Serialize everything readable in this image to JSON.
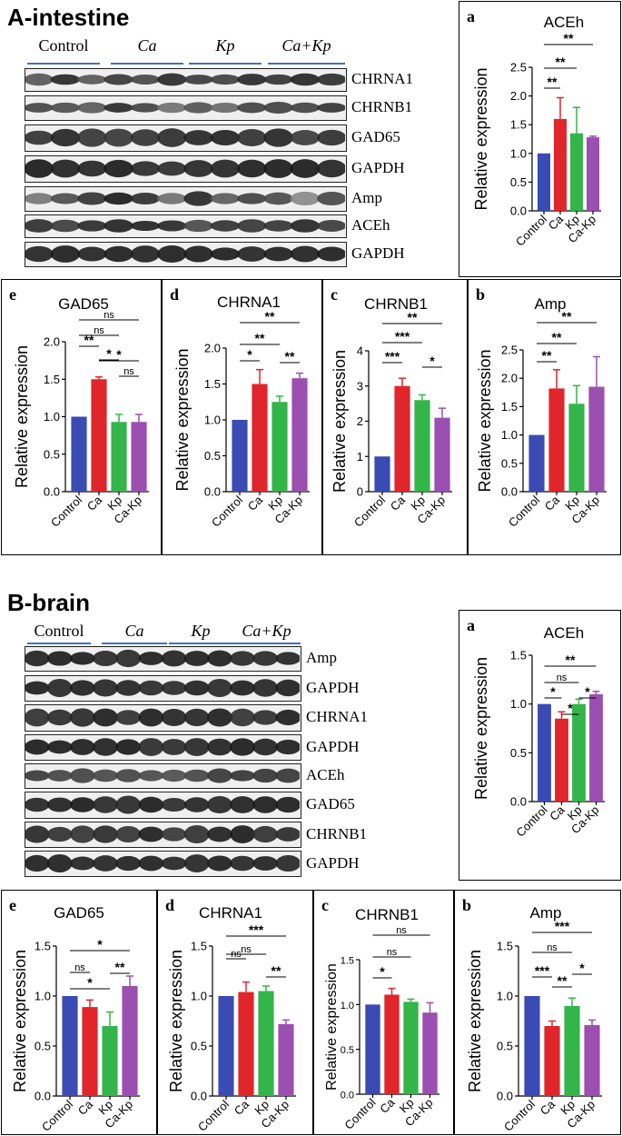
{
  "sections": [
    {
      "id": "A",
      "title": "A-intestine",
      "groups": [
        "Control",
        "Ca",
        "Kp",
        "Ca+Kp"
      ],
      "bands": [
        "CHRNA1",
        "CHRNB1",
        "GAD65",
        "GAPDH",
        "Amp",
        "ACEh",
        "GAPDH"
      ],
      "charts": [
        {
          "letter": "a",
          "title": "ACEh",
          "type": "bar",
          "ylabel": "Relative expression",
          "categories": [
            "Control",
            "Ca",
            "Kp",
            "Ca-Kp"
          ],
          "values": [
            1.0,
            1.6,
            1.35,
            1.28
          ],
          "errors": [
            0,
            0.37,
            0.45,
            0.02
          ],
          "ylim": [
            0,
            2.5
          ],
          "yticks": [
            "0.0",
            "0.5",
            "1.0",
            "1.5",
            "2.0",
            "2.5"
          ],
          "annotations": [
            {
              "from": 0,
              "to": 1,
              "text": "**"
            },
            {
              "from": 0,
              "to": 2,
              "text": "**"
            },
            {
              "from": 0,
              "to": 3,
              "text": "**"
            }
          ]
        },
        {
          "letter": "e",
          "title": "GAD65",
          "type": "bar",
          "ylabel": "Relative expression",
          "categories": [
            "Control",
            "Ca",
            "Kp",
            "Ca-Kp"
          ],
          "values": [
            1.0,
            1.5,
            0.93,
            0.93
          ],
          "errors": [
            0,
            0.03,
            0.1,
            0.1
          ],
          "ylim": [
            0,
            2.0
          ],
          "yticks": [
            "0.0",
            "0.5",
            "1.0",
            "1.5",
            "2.0"
          ],
          "annotations": [
            {
              "from": 0,
              "to": 1,
              "text": "**"
            },
            {
              "from": 1,
              "to": 2,
              "text": "*"
            },
            {
              "from": 2,
              "to": 3,
              "text": "ns"
            },
            {
              "from": 1,
              "to": 3,
              "text": "*"
            },
            {
              "from": 0,
              "to": 2,
              "text": "ns"
            },
            {
              "from": 0,
              "to": 3,
              "text": "ns"
            }
          ]
        },
        {
          "letter": "d",
          "title": "CHRNA1",
          "type": "bar",
          "ylabel": "Relative expression",
          "categories": [
            "Control",
            "Ca",
            "Kp",
            "Ca-Kp"
          ],
          "values": [
            1.0,
            1.5,
            1.25,
            1.58
          ],
          "errors": [
            0,
            0.2,
            0.08,
            0.07
          ],
          "ylim": [
            0,
            2.0
          ],
          "yticks": [
            "0.0",
            "0.5",
            "1.0",
            "1.5",
            "2.0"
          ],
          "annotations": [
            {
              "from": 0,
              "to": 1,
              "text": "*"
            },
            {
              "from": 2,
              "to": 3,
              "text": "**"
            },
            {
              "from": 0,
              "to": 2,
              "text": "**"
            },
            {
              "from": 0,
              "to": 3,
              "text": "**"
            }
          ]
        },
        {
          "letter": "c",
          "title": "CHRNB1",
          "type": "bar",
          "ylabel": "Relative expression",
          "categories": [
            "Control",
            "Ca",
            "Kp",
            "Ca-Kp"
          ],
          "values": [
            1.0,
            3.0,
            2.6,
            2.1
          ],
          "errors": [
            0,
            0.22,
            0.15,
            0.27
          ],
          "ylim": [
            0,
            4
          ],
          "yticks": [
            "0",
            "1",
            "2",
            "3",
            "4"
          ],
          "annotations": [
            {
              "from": 0,
              "to": 1,
              "text": "***"
            },
            {
              "from": 2,
              "to": 3,
              "text": "*"
            },
            {
              "from": 0,
              "to": 2,
              "text": "***"
            },
            {
              "from": 0,
              "to": 3,
              "text": "**"
            }
          ]
        },
        {
          "letter": "b",
          "title": "Amp",
          "type": "bar",
          "ylabel": "Relative expression",
          "categories": [
            "Control",
            "Ca",
            "Kp",
            "Ca-Kp"
          ],
          "values": [
            1.0,
            1.82,
            1.55,
            1.85
          ],
          "errors": [
            0,
            0.33,
            0.32,
            0.53
          ],
          "ylim": [
            0,
            2.5
          ],
          "yticks": [
            "0.0",
            "0.5",
            "1.0",
            "1.5",
            "2.0",
            "2.5"
          ],
          "annotations": [
            {
              "from": 0,
              "to": 1,
              "text": "**"
            },
            {
              "from": 0,
              "to": 2,
              "text": "**"
            },
            {
              "from": 0,
              "to": 3,
              "text": "**"
            }
          ]
        }
      ]
    },
    {
      "id": "B",
      "title": "B-brain",
      "groups": [
        "Control",
        "Ca",
        "Kp",
        "Ca+Kp"
      ],
      "bands": [
        "Amp",
        "GAPDH",
        "CHRNA1",
        "GAPDH",
        "ACEh",
        "GAD65",
        "CHRNB1",
        "GAPDH"
      ],
      "charts": [
        {
          "letter": "a",
          "title": "ACEh",
          "type": "bar",
          "ylabel": "Relative expression",
          "categories": [
            "Control",
            "Ca",
            "Kp",
            "Ca-Kp"
          ],
          "values": [
            1.0,
            0.85,
            1.0,
            1.1
          ],
          "errors": [
            0,
            0.07,
            0.05,
            0.03
          ],
          "ylim": [
            0,
            1.5
          ],
          "yticks": [
            "0.0",
            "0.5",
            "1.0",
            "1.5"
          ],
          "annotations": [
            {
              "from": 0,
              "to": 1,
              "text": "*"
            },
            {
              "from": 1,
              "to": 2,
              "text": "*"
            },
            {
              "from": 2,
              "to": 3,
              "text": "*"
            },
            {
              "from": 0,
              "to": 2,
              "text": "ns"
            },
            {
              "from": 0,
              "to": 3,
              "text": "**"
            }
          ]
        },
        {
          "letter": "e",
          "title": "GAD65",
          "type": "bar",
          "ylabel": "Relative expression",
          "categories": [
            "Control",
            "Ca",
            "Kp",
            "Ca-Kp"
          ],
          "values": [
            1.0,
            0.89,
            0.7,
            1.1
          ],
          "errors": [
            0,
            0.07,
            0.14,
            0.1
          ],
          "ylim": [
            0,
            1.5
          ],
          "yticks": [
            "0.0",
            "0.5",
            "1.0",
            "1.5"
          ],
          "annotations": [
            {
              "from": 0,
              "to": 1,
              "text": "ns"
            },
            {
              "from": 0,
              "to": 2,
              "text": "*"
            },
            {
              "from": 2,
              "to": 3,
              "text": "**"
            },
            {
              "from": 0,
              "to": 3,
              "text": "*"
            }
          ]
        },
        {
          "letter": "d",
          "title": "CHRNA1",
          "type": "bar",
          "ylabel": "Relative expression",
          "categories": [
            "Control",
            "Ca",
            "Kp",
            "Ca-Kp"
          ],
          "values": [
            1.0,
            1.04,
            1.05,
            0.72
          ],
          "errors": [
            0,
            0.1,
            0.05,
            0.04
          ],
          "ylim": [
            0,
            1.5
          ],
          "yticks": [
            "0.0",
            "0.5",
            "1.0",
            "1.5"
          ],
          "annotations": [
            {
              "from": 0,
              "to": 1,
              "text": "ns"
            },
            {
              "from": 2,
              "to": 3,
              "text": "**"
            },
            {
              "from": 0,
              "to": 2,
              "text": "ns"
            },
            {
              "from": 0,
              "to": 3,
              "text": "***"
            }
          ]
        },
        {
          "letter": "c",
          "title": "CHRNB1",
          "type": "bar",
          "ylabel": "Relative expression",
          "categories": [
            "Control",
            "Ca",
            "Kp",
            "Ca-Kp"
          ],
          "values": [
            1.0,
            1.11,
            1.03,
            0.91
          ],
          "errors": [
            0,
            0.07,
            0.03,
            0.11
          ],
          "ylim": [
            0,
            1.5
          ],
          "yticks": [
            "0.0",
            "0.5",
            "1.0",
            "1.5"
          ],
          "annotations": [
            {
              "from": 0,
              "to": 1,
              "text": "*"
            },
            {
              "from": 0,
              "to": 2,
              "text": "ns"
            },
            {
              "from": 0,
              "to": 3,
              "text": "ns"
            }
          ]
        },
        {
          "letter": "b",
          "title": "Amp",
          "type": "bar",
          "ylabel": "Relative expression",
          "categories": [
            "Control",
            "Ca",
            "Kp",
            "Ca-Kp"
          ],
          "values": [
            1.0,
            0.7,
            0.9,
            0.71
          ],
          "errors": [
            0,
            0.05,
            0.08,
            0.05
          ],
          "ylim": [
            0,
            1.5
          ],
          "yticks": [
            "0.0",
            "0.5",
            "1.0",
            "1.5"
          ],
          "annotations": [
            {
              "from": 0,
              "to": 1,
              "text": "***"
            },
            {
              "from": 1,
              "to": 2,
              "text": "**"
            },
            {
              "from": 2,
              "to": 3,
              "text": "*"
            },
            {
              "from": 0,
              "to": 2,
              "text": "ns"
            },
            {
              "from": 0,
              "to": 3,
              "text": "***"
            }
          ]
        }
      ]
    }
  ],
  "colors": {
    "Control": "#3b4bb4",
    "Ca": "#e0262b",
    "Kp": "#33b54a",
    "Ca-Kp": "#9b4fb0",
    "group_line": "#3f6fc7"
  }
}
